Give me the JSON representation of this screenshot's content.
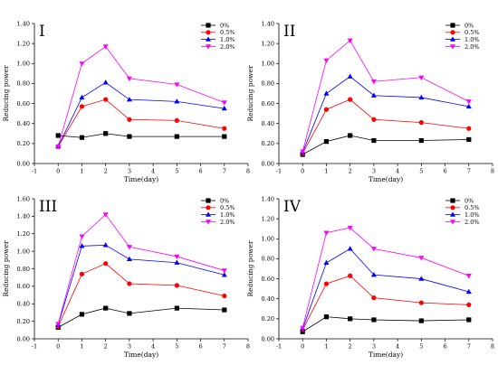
{
  "figure": {
    "legend": [
      "0%",
      "0.5%",
      "1.0%",
      "2.0%"
    ],
    "series_colors": [
      "#000000",
      "#ff0000",
      "#0000ff",
      "#ff00ff"
    ],
    "series_markers": [
      "square",
      "circle",
      "triangle-up",
      "triangle-down"
    ]
  },
  "chart_data": [
    {
      "type": "line",
      "panel_label": "I",
      "xlabel": "Time(day)",
      "ylabel": "Reducing power",
      "xlim": [
        -1,
        8
      ],
      "ylim": [
        0,
        1.4
      ],
      "xticks": [
        -1,
        0,
        1,
        2,
        3,
        4,
        5,
        6,
        7,
        8
      ],
      "yticks": [
        "0.00",
        "0.20",
        "0.40",
        "0.60",
        "0.80",
        "1.00",
        "1.20",
        "1.40"
      ],
      "x": [
        0,
        1,
        2,
        3,
        5,
        7
      ],
      "series": [
        {
          "name": "0%",
          "values": [
            0.28,
            0.26,
            0.3,
            0.27,
            0.27,
            0.27
          ]
        },
        {
          "name": "0.5%",
          "values": [
            0.17,
            0.57,
            0.64,
            0.44,
            0.43,
            0.35
          ]
        },
        {
          "name": "1.0%",
          "values": [
            0.17,
            0.66,
            0.81,
            0.64,
            0.62,
            0.55
          ]
        },
        {
          "name": "2.0%",
          "values": [
            0.17,
            1.0,
            1.17,
            0.85,
            0.79,
            0.61
          ]
        }
      ]
    },
    {
      "type": "line",
      "panel_label": "II",
      "xlabel": "Time(day)",
      "ylabel": "Reducing power",
      "xlim": [
        -1,
        8
      ],
      "ylim": [
        0,
        1.4
      ],
      "xticks": [
        -1,
        0,
        1,
        2,
        3,
        4,
        5,
        6,
        7,
        8
      ],
      "yticks": [
        "0.00",
        "0.20",
        "0.40",
        "0.60",
        "0.80",
        "1.00",
        "1.20",
        "1.40"
      ],
      "x": [
        0,
        1,
        2,
        3,
        5,
        7
      ],
      "series": [
        {
          "name": "0%",
          "values": [
            0.09,
            0.22,
            0.28,
            0.23,
            0.23,
            0.24
          ]
        },
        {
          "name": "0.5%",
          "values": [
            0.1,
            0.54,
            0.64,
            0.44,
            0.41,
            0.35
          ]
        },
        {
          "name": "1.0%",
          "values": [
            0.11,
            0.7,
            0.87,
            0.68,
            0.66,
            0.57
          ]
        },
        {
          "name": "2.0%",
          "values": [
            0.12,
            1.03,
            1.23,
            0.82,
            0.86,
            0.62
          ]
        }
      ]
    },
    {
      "type": "line",
      "panel_label": "III",
      "xlabel": "Time(day)",
      "ylabel": "Reducing power",
      "xlim": [
        -1,
        8
      ],
      "ylim": [
        0,
        1.6
      ],
      "xticks": [
        -1,
        0,
        1,
        2,
        3,
        4,
        5,
        6,
        7,
        8
      ],
      "yticks": [
        "0.00",
        "0.20",
        "0.40",
        "0.60",
        "0.80",
        "1.00",
        "1.20",
        "1.40",
        "1.60"
      ],
      "x": [
        0,
        1,
        2,
        3,
        5,
        7
      ],
      "series": [
        {
          "name": "0%",
          "values": [
            0.13,
            0.28,
            0.35,
            0.29,
            0.35,
            0.33
          ]
        },
        {
          "name": "0.5%",
          "values": [
            0.14,
            0.74,
            0.86,
            0.63,
            0.61,
            0.49
          ]
        },
        {
          "name": "1.0%",
          "values": [
            0.16,
            1.06,
            1.07,
            0.91,
            0.87,
            0.73
          ]
        },
        {
          "name": "2.0%",
          "values": [
            0.17,
            1.17,
            1.42,
            1.05,
            0.94,
            0.78
          ]
        }
      ]
    },
    {
      "type": "line",
      "panel_label": "IV",
      "xlabel": "Time(day)",
      "ylabel": "Reducing power",
      "xlim": [
        -1,
        8
      ],
      "ylim": [
        0,
        1.4
      ],
      "xticks": [
        -1,
        0,
        1,
        2,
        3,
        4,
        5,
        6,
        7,
        8
      ],
      "yticks": [
        "0.00",
        "0.20",
        "0.40",
        "0.60",
        "0.80",
        "1.00",
        "1.20",
        "1.40"
      ],
      "x": [
        0,
        1,
        2,
        3,
        5,
        7
      ],
      "series": [
        {
          "name": "0%",
          "values": [
            0.07,
            0.22,
            0.2,
            0.19,
            0.18,
            0.19
          ]
        },
        {
          "name": "0.5%",
          "values": [
            0.09,
            0.55,
            0.63,
            0.41,
            0.36,
            0.34
          ]
        },
        {
          "name": "1.0%",
          "values": [
            0.1,
            0.76,
            0.9,
            0.64,
            0.6,
            0.47
          ]
        },
        {
          "name": "2.0%",
          "values": [
            0.11,
            1.06,
            1.11,
            0.9,
            0.81,
            0.63
          ]
        }
      ]
    }
  ]
}
